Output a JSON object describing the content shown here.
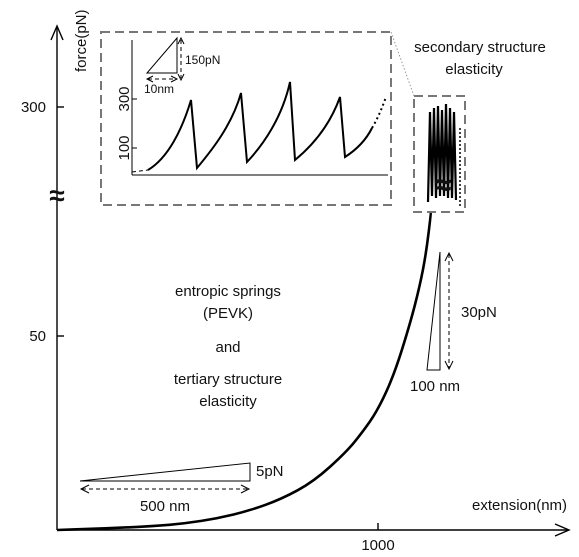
{
  "chart_data": {
    "type": "line",
    "title": "",
    "xlabel": "extension(nm)",
    "ylabel": "force(pN)",
    "x_ticks": [
      1000
    ],
    "y_ticks": [
      50,
      300
    ],
    "axis_break_symbol": "≈",
    "series": [
      {
        "x": [
          0,
          100,
          200,
          300,
          400,
          500,
          600,
          700,
          800,
          900,
          950,
          1000,
          1050,
          1100,
          1130,
          1150,
          1165
        ],
        "y": [
          0,
          0.3,
          0.6,
          1,
          1.7,
          3,
          5,
          8,
          12.5,
          20,
          25,
          31,
          40,
          53,
          62,
          70,
          80
        ]
      }
    ],
    "sawtooth_inset": {
      "y_ticks": [
        100,
        300
      ],
      "peaks_pN": [
        300,
        310,
        345,
        330
      ],
      "scale_force": "150pN",
      "scale_distance": "10nm"
    },
    "annotations": {
      "secondary": [
        "secondary structure",
        "elasticity"
      ],
      "entropic": [
        "entropic springs",
        "(PEVK)",
        "and",
        "tertiary structure",
        "elasticity"
      ],
      "scale_low_force": "5pN",
      "scale_low_dist": "500 nm",
      "scale_mid_force": "30pN",
      "scale_mid_dist": "100 nm"
    }
  }
}
